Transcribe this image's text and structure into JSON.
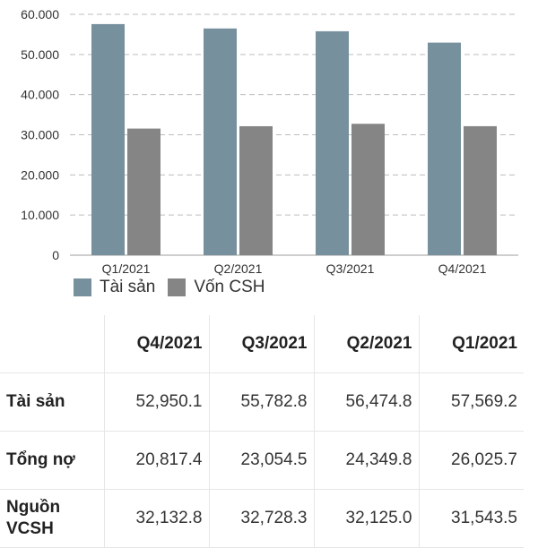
{
  "chart_data": {
    "type": "bar",
    "categories": [
      "Q1/2021",
      "Q2/2021",
      "Q3/2021",
      "Q4/2021"
    ],
    "series": [
      {
        "name": "Tài sản",
        "color": "#76909e",
        "values": [
          57569.2,
          56474.8,
          55782.8,
          52950.1
        ]
      },
      {
        "name": "Vốn CSH",
        "color": "#858585",
        "values": [
          31543.5,
          32125.0,
          32728.3,
          32132.8
        ]
      }
    ],
    "ylim": [
      0,
      60000
    ],
    "yticks": [
      0,
      10000,
      20000,
      30000,
      40000,
      50000,
      60000
    ],
    "ytick_labels": [
      "0",
      "10.000",
      "20.000",
      "30.000",
      "40.000",
      "50.000",
      "60.000"
    ],
    "grid": true,
    "legend_position": "bottom-left"
  },
  "table": {
    "header_blank": "",
    "columns": [
      "Q4/2021",
      "Q3/2021",
      "Q2/2021",
      "Q1/2021"
    ],
    "rows": [
      {
        "label": "Tài sản",
        "values": [
          "52,950.1",
          "55,782.8",
          "56,474.8",
          "57,569.2"
        ]
      },
      {
        "label": "Tổng nợ",
        "values": [
          "20,817.4",
          "23,054.5",
          "24,349.8",
          "26,025.7"
        ]
      },
      {
        "label": "Nguồn VCSH",
        "values": [
          "32,132.8",
          "32,728.3",
          "32,125.0",
          "31,543.5"
        ]
      }
    ]
  }
}
